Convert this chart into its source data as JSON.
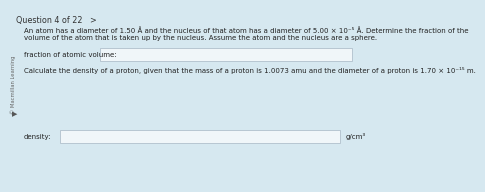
{
  "bg_color": "#d6e8f0",
  "header_text": "Question 4 of 22   >",
  "header_fontsize": 5.8,
  "header_color": "#333333",
  "side_label": "© Macmillan Learning",
  "body_text_1": "An atom has a diameter of 1.50 Å and the nucleus of that atom has a diameter of 5.00 × 10⁻⁵ Å. Determine the fraction of the",
  "body_text_2": "volume of the atom that is taken up by the nucleus. Assume the atom and the nucleus are a sphere.",
  "label1": "fraction of atomic volume:",
  "label2": "density:",
  "unit2": "g/cm³",
  "body_text_3": "Calculate the density of a proton, given that the mass of a proton is 1.0073 amu and the diameter of a proton is 1.70 × 10⁻¹⁵ m.",
  "text_fontsize": 5.0,
  "label_fontsize": 5.0,
  "box_color": "#f0f6f9",
  "box_edge_color": "#b0c0cc",
  "text_color": "#222222",
  "arrow_color": "#555555"
}
